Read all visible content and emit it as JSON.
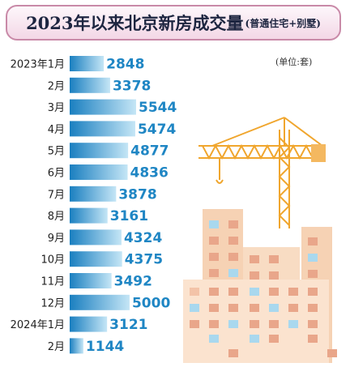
{
  "title": "2023年以来北京新房成交量",
  "subtitle": "(普通住宅+别墅)",
  "unit": "(单位:套)",
  "colors": {
    "bar_start": "#1a7fc0",
    "bar_end": "#bfe3f5",
    "value_text": "#1f86c4",
    "title_border": "#c98aa8"
  },
  "chart_data": {
    "type": "bar",
    "orientation": "horizontal",
    "title": "2023年以来北京新房成交量",
    "subtitle": "(普通住宅+别墅)",
    "unit": "(单位:套)",
    "categories": [
      "2023年1月",
      "2月",
      "3月",
      "4月",
      "5月",
      "6月",
      "7月",
      "8月",
      "9月",
      "10月",
      "11月",
      "12月",
      "2024年1月",
      "2月"
    ],
    "values": [
      2848,
      3378,
      5544,
      5474,
      4877,
      4836,
      3878,
      3161,
      4324,
      4375,
      3492,
      5000,
      3121,
      1144
    ],
    "value_labels": [
      "2848",
      "3378",
      "5544",
      "5474",
      "4877",
      "4836",
      "3878",
      "3161",
      "4324",
      "4375",
      "3492",
      "5000",
      "3121",
      "1144"
    ],
    "grid": false,
    "legend": "none"
  }
}
